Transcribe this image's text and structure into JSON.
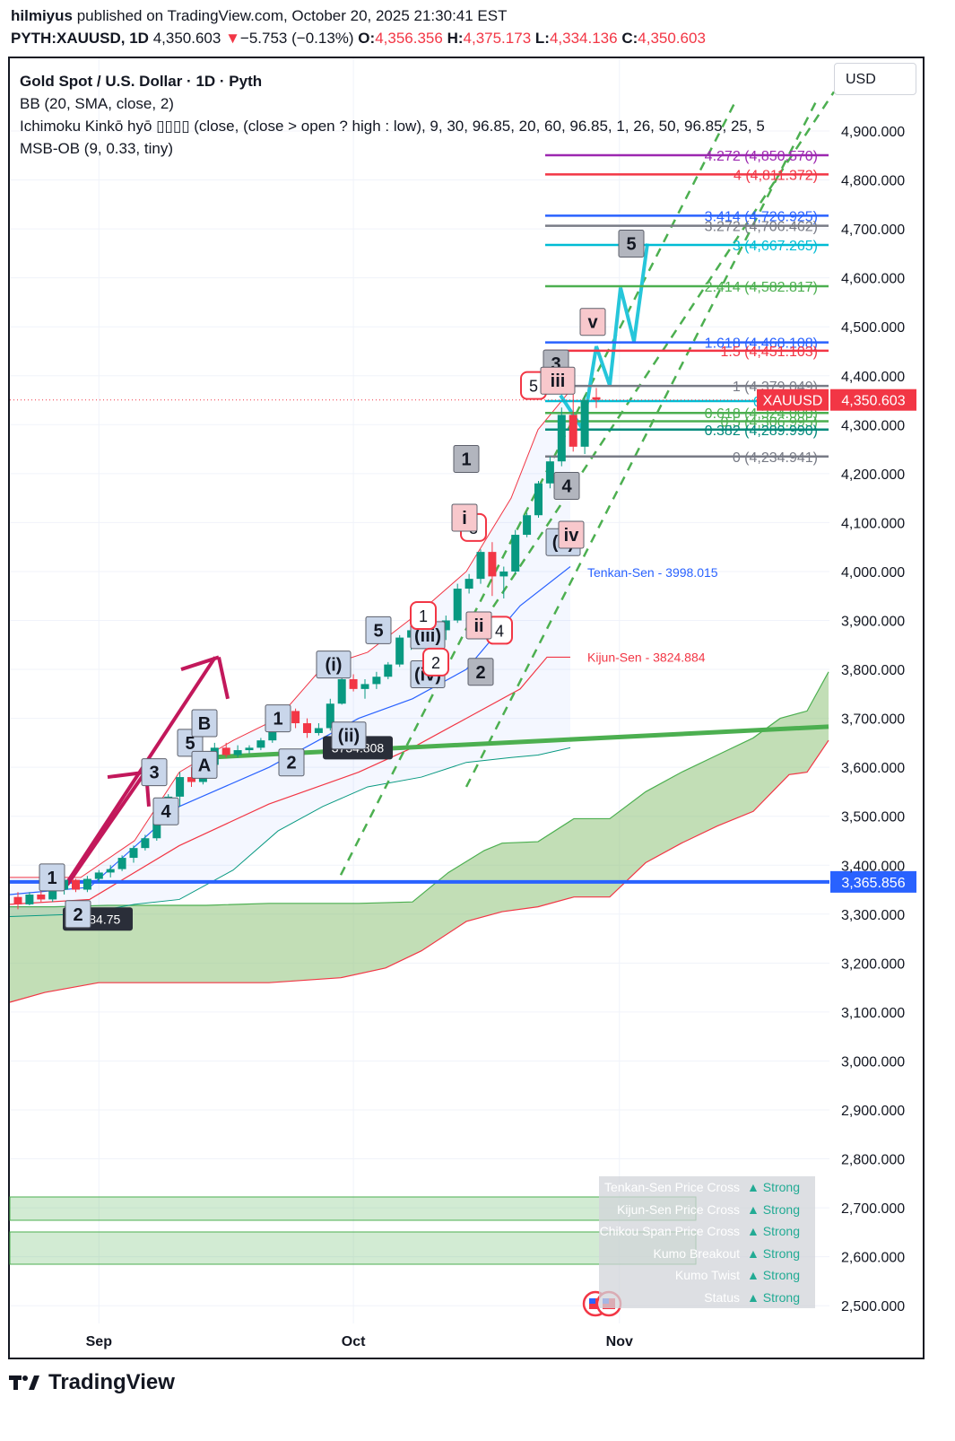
{
  "header": {
    "author": "hilmiyus",
    "published_text": "published on TradingView.com, October 20, 2025 21:30:41 EST",
    "symbol": "PYTH:XAUUSD, 1D",
    "last": "4,350.603",
    "arrow": "▼",
    "change": "−5.753 (−0.13%)",
    "o_label": "O:",
    "o": "4,356.356",
    "h_label": "H:",
    "h": "4,375.173",
    "l_label": "L:",
    "l": "4,334.136",
    "c_label": "C:",
    "c": "4,350.603"
  },
  "legend": {
    "title": "Gold Spot / U.S. Dollar · 1D · Pyth",
    "bb": "BB (20, SMA, close, 2)",
    "ichimoku": "Ichimoku Kinkō hyō ▯▯▯▯ (close, (close > open ? high : low), 9, 30, 96.85, 20, 60, 96.85, 1, 26, 50, 96.85, 25, 5",
    "msb": "MSB-OB (9, 0.33, tiny)"
  },
  "currency_button": "USD",
  "chart_data": {
    "type": "candlestick",
    "timeframe": "1D",
    "y_axis": {
      "min": 2450,
      "max": 4980,
      "ticks": [
        2500,
        2600,
        2700,
        2800,
        2900,
        3000,
        3100,
        3200,
        3300,
        3400,
        3500,
        3600,
        3700,
        3800,
        3900,
        4000,
        4100,
        4200,
        4300,
        4400,
        4500,
        4600,
        4700,
        4800,
        4900
      ],
      "tick_labels": [
        "2,500.000",
        "2,600.000",
        "2,700.000",
        "2,800.000",
        "2,900.000",
        "3,000.000",
        "3,100.000",
        "3,200.000",
        "3,300.000",
        "3,400.000",
        "3,500.000",
        "3,600.000",
        "3,700.000",
        "3,800.000",
        "3,900.000",
        "4,000.000",
        "4,100.000",
        "4,200.000",
        "4,300.000",
        "4,400.000",
        "4,500.000",
        "4,600.000",
        "4,700.000",
        "4,800.000",
        "4,900.000"
      ]
    },
    "x_axis": {
      "labels": [
        {
          "text": "Sep",
          "bar": 7
        },
        {
          "text": "Oct",
          "bar": 29
        },
        {
          "text": "Nov",
          "bar": 52
        }
      ]
    },
    "candles": [
      [
        3335,
        3345,
        3310,
        3320
      ],
      [
        3320,
        3345,
        3318,
        3340
      ],
      [
        3340,
        3350,
        3325,
        3330
      ],
      [
        3330,
        3355,
        3325,
        3350
      ],
      [
        3350,
        3375,
        3340,
        3370
      ],
      [
        3370,
        3372,
        3345,
        3350
      ],
      [
        3350,
        3378,
        3345,
        3372
      ],
      [
        3372,
        3390,
        3365,
        3385
      ],
      [
        3385,
        3400,
        3375,
        3392
      ],
      [
        3392,
        3420,
        3388,
        3415
      ],
      [
        3415,
        3440,
        3405,
        3435
      ],
      [
        3435,
        3462,
        3430,
        3455
      ],
      [
        3455,
        3505,
        3450,
        3500
      ],
      [
        3500,
        3545,
        3495,
        3540
      ],
      [
        3540,
        3590,
        3520,
        3580
      ],
      [
        3580,
        3600,
        3560,
        3570
      ],
      [
        3570,
        3610,
        3565,
        3605
      ],
      [
        3605,
        3650,
        3600,
        3640
      ],
      [
        3640,
        3650,
        3620,
        3625
      ],
      [
        3625,
        3645,
        3620,
        3635
      ],
      [
        3635,
        3645,
        3628,
        3640
      ],
      [
        3640,
        3660,
        3635,
        3655
      ],
      [
        3655,
        3690,
        3650,
        3685
      ],
      [
        3685,
        3720,
        3680,
        3715
      ],
      [
        3715,
        3720,
        3680,
        3690
      ],
      [
        3690,
        3700,
        3660,
        3670
      ],
      [
        3670,
        3690,
        3665,
        3680
      ],
      [
        3680,
        3740,
        3675,
        3730
      ],
      [
        3730,
        3790,
        3728,
        3780
      ],
      [
        3780,
        3790,
        3755,
        3760
      ],
      [
        3760,
        3780,
        3740,
        3770
      ],
      [
        3770,
        3795,
        3760,
        3785
      ],
      [
        3785,
        3815,
        3780,
        3810
      ],
      [
        3810,
        3870,
        3805,
        3865
      ],
      [
        3865,
        3890,
        3840,
        3880
      ],
      [
        3880,
        3895,
        3870,
        3885
      ],
      [
        3885,
        3905,
        3870,
        3880
      ],
      [
        3880,
        3910,
        3860,
        3900
      ],
      [
        3900,
        3975,
        3895,
        3965
      ],
      [
        3965,
        3995,
        3955,
        3985
      ],
      [
        3985,
        4045,
        3975,
        4040
      ],
      [
        4040,
        4060,
        3950,
        3990
      ],
      [
        3990,
        4010,
        3945,
        4000
      ],
      [
        4000,
        4085,
        3995,
        4075
      ],
      [
        4075,
        4120,
        4070,
        4115
      ],
      [
        4115,
        4185,
        4110,
        4180
      ],
      [
        4180,
        4235,
        4170,
        4225
      ],
      [
        4225,
        4335,
        4215,
        4320
      ],
      [
        4320,
        4380,
        4245,
        4255
      ],
      [
        4255,
        4360,
        4240,
        4350
      ],
      [
        4356,
        4375,
        4334,
        4351
      ]
    ],
    "fib_levels": [
      {
        "label": "4.272 (4,850.570)",
        "value": 4850.57,
        "color": "#9c27b0"
      },
      {
        "label": "4 (4,811.372)",
        "value": 4811.372,
        "color": "#f23645"
      },
      {
        "label": "3.414 (4,726.925)",
        "value": 4726.925,
        "color": "#2962ff"
      },
      {
        "label": "3.272 (4,706.462)",
        "value": 4706.462,
        "color": "#787b86"
      },
      {
        "label": "3 (4,667.265)",
        "value": 4667.265,
        "color": "#00bcd4"
      },
      {
        "label": "2.414 (4,582.817)",
        "value": 4582.817,
        "color": "#4caf50"
      },
      {
        "label": "1.618 (4,468.108)",
        "value": 4468.108,
        "color": "#2962ff"
      },
      {
        "label": "1.5 (4,451.103)",
        "value": 4451.103,
        "color": "#f23645"
      },
      {
        "label": "1 (4,379.049)",
        "value": 4379.049,
        "color": "#787b86"
      },
      {
        "label": "0.786 (4,3",
        "value": 4348.2,
        "color": "#00bcd4"
      },
      {
        "label": "0.618 (4,324.000)",
        "value": 4324.0,
        "color": "#4caf50"
      },
      {
        "label": "0.5 (4,306.995)",
        "value": 4306.995,
        "color": "#4caf50"
      },
      {
        "label": "0.382 (4,289.990)",
        "value": 4289.99,
        "color": "#00897b"
      },
      {
        "label": "0 (4,234.941)",
        "value": 4234.941,
        "color": "#787b86"
      }
    ],
    "horizontal_line": {
      "value": 3365.856,
      "label": "3,365.856",
      "color": "#2962ff"
    },
    "price_tag": {
      "symbol": "XAUUSD",
      "value": 4350.603,
      "label": "4,350.603",
      "color": "#f23645"
    },
    "tenkan_label": "Tenkan-Sen - 3998.015",
    "kijun_label": "Kijun-Sen - 3824.884",
    "ob_labels": [
      "3734.808",
      "3284.75"
    ],
    "wave_labels": [
      "1",
      "2",
      "3",
      "4",
      "5",
      "A",
      "B",
      "(i)",
      "(ii)",
      "(iii)",
      "(iv)",
      "(v)",
      "i",
      "ii",
      "iii",
      "iv",
      "v"
    ]
  },
  "signal_table": [
    {
      "label": "Tenkan-Sen Price Cross",
      "value": "▲ Strong"
    },
    {
      "label": "Kijun-Sen Price Cross",
      "value": "▲ Strong"
    },
    {
      "label": "Chikou Span Price Cross",
      "value": "▲ Strong"
    },
    {
      "label": "Kumo Breakout",
      "value": "▲ Strong"
    },
    {
      "label": "Kumo Twist",
      "value": "▲ Strong"
    },
    {
      "label": "Status",
      "value": "▲ Strong"
    }
  ],
  "footer_brand": "TradingView",
  "colors": {
    "up": "#089981",
    "down": "#f23645",
    "cloud": "#8fc37a",
    "trend": "#4caf50",
    "impulse": "#c2185b",
    "projection": "#26c6da"
  }
}
